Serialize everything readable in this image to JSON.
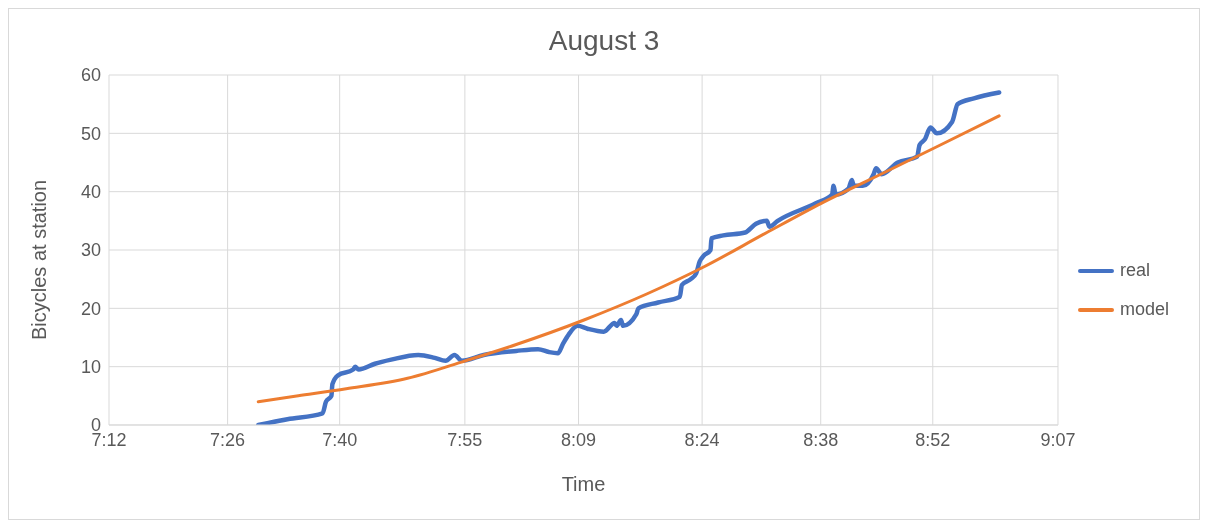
{
  "chart_data": {
    "type": "line",
    "title": "August 3",
    "xlabel": "Time",
    "ylabel": "Bicycles at station",
    "xlim": [
      7.2,
      9.12
    ],
    "xticks": [
      {
        "value": 7.2,
        "label": "7:12"
      },
      {
        "value": 7.44,
        "label": "7:26"
      },
      {
        "value": 7.6667,
        "label": "7:40"
      },
      {
        "value": 7.92,
        "label": "7:55"
      },
      {
        "value": 8.15,
        "label": "8:09"
      },
      {
        "value": 8.4,
        "label": "8:24"
      },
      {
        "value": 8.64,
        "label": "8:38"
      },
      {
        "value": 8.8667,
        "label": "8:52"
      },
      {
        "value": 9.12,
        "label": "9:07"
      }
    ],
    "ylim": [
      0,
      60
    ],
    "yticks": [
      0,
      10,
      20,
      30,
      40,
      50,
      60
    ],
    "grid": true,
    "legend": "right",
    "marker": "none",
    "line_style": "solid",
    "series": [
      {
        "name": "real",
        "color": "#4472c4",
        "x": [
          7.502,
          7.561,
          7.632,
          7.639,
          7.65,
          7.652,
          7.663,
          7.694,
          7.698,
          7.705,
          7.738,
          7.771,
          7.826,
          7.859,
          7.881,
          7.899,
          7.914,
          7.958,
          8.024,
          8.068,
          8.09,
          8.108,
          8.119,
          8.13,
          8.148,
          8.168,
          8.201,
          8.223,
          8.227,
          8.236,
          8.24,
          8.267,
          8.271,
          8.311,
          8.355,
          8.359,
          8.377,
          8.388,
          8.395,
          8.403,
          8.417,
          8.419,
          8.443,
          8.487,
          8.509,
          8.531,
          8.536,
          8.553,
          8.63,
          8.663,
          8.666,
          8.67,
          8.696,
          8.703,
          8.707,
          8.725,
          8.747,
          8.752,
          8.763,
          8.796,
          8.835,
          8.84,
          8.851,
          8.862,
          8.875,
          8.906,
          8.917,
          8.95,
          9.001
        ],
        "values": [
          0,
          1,
          2,
          4,
          5,
          7,
          8.5,
          9.5,
          10,
          9.5,
          10.5,
          11.2,
          12,
          11.5,
          11,
          12,
          11,
          12,
          12.7,
          13,
          12.5,
          12.3,
          14,
          15.5,
          17,
          16.5,
          16,
          17.5,
          17,
          18,
          17,
          19,
          20,
          21,
          22,
          24,
          25,
          26,
          28,
          29,
          30,
          32,
          32.5,
          33,
          34.5,
          35,
          34,
          35,
          38,
          39.5,
          41,
          39.5,
          40.5,
          42,
          41,
          41,
          43,
          44,
          43,
          45,
          46,
          48,
          49,
          51,
          50,
          52,
          55,
          56,
          57
        ]
      },
      {
        "name": "model",
        "color": "#ed7d31",
        "x": [
          7.502,
          7.583,
          7.68,
          7.804,
          7.921,
          8.024,
          8.161,
          8.289,
          8.401,
          8.531,
          8.641,
          8.774,
          8.882,
          9.001
        ],
        "values": [
          4,
          5,
          6.2,
          8,
          11,
          13.8,
          18,
          22.5,
          27,
          33,
          38,
          43.5,
          48,
          53
        ]
      }
    ]
  }
}
